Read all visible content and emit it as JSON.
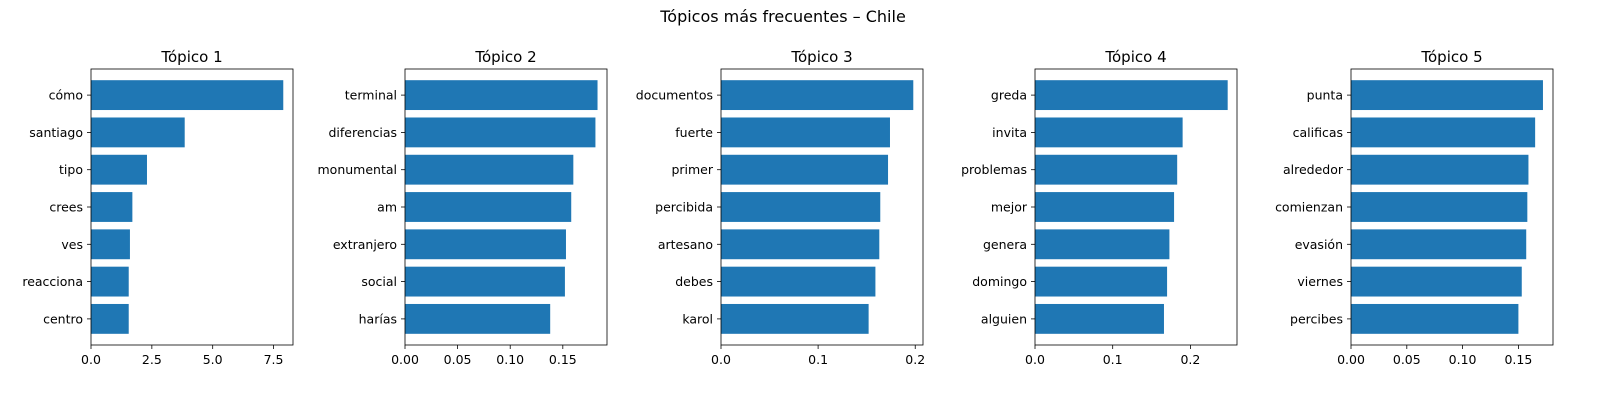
{
  "suptitle": "Tópicos más frecuentes – Chile",
  "colors": {
    "bar": "#1f77b4",
    "axis": "#000000",
    "background": "#ffffff"
  },
  "chart_data": [
    {
      "type": "bar",
      "orientation": "horizontal",
      "title": "Tópico 1",
      "categories": [
        "cómo",
        "santiago",
        "tipo",
        "crees",
        "ves",
        "reacciona",
        "centro"
      ],
      "values": [
        7.9,
        3.85,
        2.3,
        1.7,
        1.6,
        1.55,
        1.55
      ],
      "xlim": [
        0,
        8.3
      ],
      "xticks": [
        0.0,
        2.5,
        5.0,
        7.5
      ],
      "xtick_labels": [
        "0.0",
        "2.5",
        "5.0",
        "7.5"
      ],
      "grid": false
    },
    {
      "type": "bar",
      "orientation": "horizontal",
      "title": "Tópico 2",
      "categories": [
        "terminal",
        "diferencias",
        "monumental",
        "am",
        "extranjero",
        "social",
        "harías"
      ],
      "values": [
        0.183,
        0.181,
        0.16,
        0.158,
        0.153,
        0.152,
        0.138
      ],
      "xlim": [
        0,
        0.192
      ],
      "xticks": [
        0.0,
        0.05,
        0.1,
        0.15
      ],
      "xtick_labels": [
        "0.00",
        "0.05",
        "0.10",
        "0.15"
      ],
      "grid": false
    },
    {
      "type": "bar",
      "orientation": "horizontal",
      "title": "Tópico 3",
      "categories": [
        "documentos",
        "fuerte",
        "primer",
        "percibida",
        "artesano",
        "debes",
        "karol"
      ],
      "values": [
        0.198,
        0.174,
        0.172,
        0.164,
        0.163,
        0.159,
        0.152
      ],
      "xlim": [
        0,
        0.208
      ],
      "xticks": [
        0.0,
        0.1,
        0.2
      ],
      "xtick_labels": [
        "0.0",
        "0.1",
        "0.2"
      ],
      "grid": false
    },
    {
      "type": "bar",
      "orientation": "horizontal",
      "title": "Tópico 4",
      "categories": [
        "greda",
        "invita",
        "problemas",
        "mejor",
        "genera",
        "domingo",
        "alguien"
      ],
      "values": [
        0.248,
        0.19,
        0.183,
        0.179,
        0.173,
        0.17,
        0.166
      ],
      "xlim": [
        0,
        0.26
      ],
      "xticks": [
        0.0,
        0.1,
        0.2
      ],
      "xtick_labels": [
        "0.0",
        "0.1",
        "0.2"
      ],
      "grid": false
    },
    {
      "type": "bar",
      "orientation": "horizontal",
      "title": "Tópico 5",
      "categories": [
        "punta",
        "calificas",
        "alrededor",
        "comienzan",
        "evasión",
        "viernes",
        "percibes"
      ],
      "values": [
        0.172,
        0.165,
        0.159,
        0.158,
        0.157,
        0.153,
        0.15
      ],
      "xlim": [
        0,
        0.181
      ],
      "xticks": [
        0.0,
        0.05,
        0.1,
        0.15
      ],
      "xtick_labels": [
        "0.00",
        "0.05",
        "0.10",
        "0.15"
      ],
      "grid": false
    }
  ]
}
